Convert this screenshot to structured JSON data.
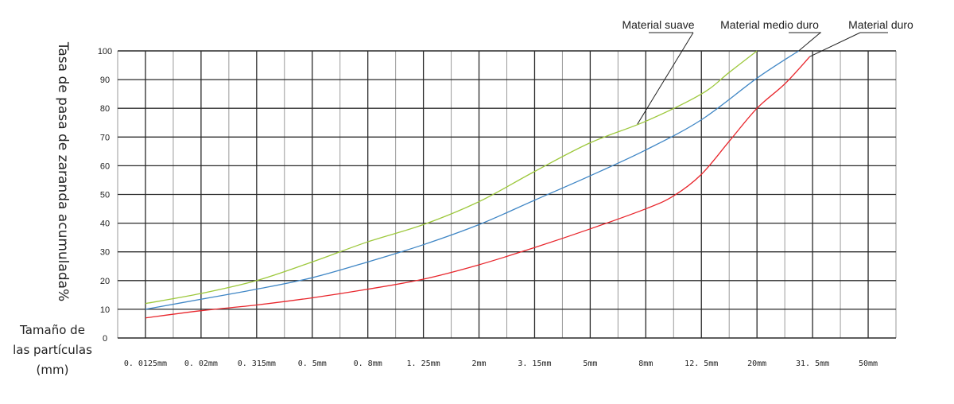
{
  "chart_data": {
    "type": "line",
    "ylabel": "Tasa de pasa de zaranda acumulada%",
    "xlabel_lines": [
      "Tamaño de",
      "las partículas",
      "(mm)"
    ],
    "categories": [
      "0. 0125mm",
      "0. 02mm",
      "0. 315mm",
      "0. 5mm",
      "0. 8mm",
      "1. 25mm",
      "2mm",
      "3. 15mm",
      "5mm",
      "8mm",
      "12. 5mm",
      "20mm",
      "31. 5mm",
      "50mm"
    ],
    "yticks": [
      "0",
      "10",
      "20",
      "30",
      "40",
      "50",
      "60",
      "70",
      "80",
      "90",
      "100"
    ],
    "ylim": [
      0,
      100
    ],
    "grid": true,
    "series": [
      {
        "name": "Material suave",
        "color": "#9dc83c",
        "x": [
          0.0,
          1.0,
          2.0,
          3.0,
          4.0,
          5.0,
          6.0,
          7.0,
          8.0,
          9.0,
          10.0,
          10.5,
          11.0
        ],
        "y": [
          12,
          15.5,
          20,
          26.5,
          33.5,
          39.5,
          47.5,
          58,
          68,
          75.5,
          85,
          92.5,
          100
        ]
      },
      {
        "name": "Material medio duro",
        "color": "#3f86c5",
        "x": [
          0.0,
          1.0,
          2.0,
          3.0,
          4.0,
          5.0,
          6.0,
          7.0,
          8.0,
          9.0,
          10.0,
          11.0,
          11.75
        ],
        "y": [
          10,
          13.5,
          17,
          21,
          26.5,
          32.5,
          39.5,
          48,
          56.5,
          65.5,
          76,
          90.5,
          100
        ]
      },
      {
        "name": "Material duro",
        "color": "#e8262c",
        "x": [
          0.0,
          1.0,
          2.0,
          3.0,
          4.0,
          5.0,
          6.0,
          7.0,
          8.0,
          9.0,
          9.5,
          10.0,
          10.5,
          11.0,
          11.5,
          11.95
        ],
        "y": [
          7,
          9.5,
          11.5,
          14,
          17,
          20.5,
          25.5,
          31.5,
          38,
          45,
          49.5,
          57,
          68.5,
          80,
          88.5,
          98
        ]
      }
    ],
    "annotations": [
      {
        "text": "Material suave",
        "series": 0,
        "point_x": 8.85,
        "point_y": 74.5
      },
      {
        "text": "Material medio duro",
        "series": 1,
        "point_x": 11.75,
        "point_y": 100
      },
      {
        "text": "Material duro",
        "series": 2,
        "point_x": 11.95,
        "point_y": 98
      }
    ]
  }
}
